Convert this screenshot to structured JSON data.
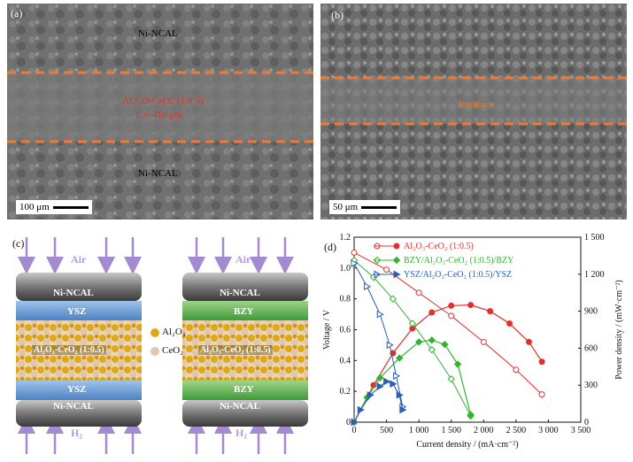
{
  "panels": {
    "a": {
      "label": "(a)",
      "top_layer": "Ni-NCAL",
      "bottom_layer": "Ni-NCAL",
      "middle_layer": "Al2O3-CeO2 (1:0.5)",
      "thickness": "L = 410 μm",
      "scale": "100 μm"
    },
    "b": {
      "label": "(b)",
      "interface": "Interface",
      "scale": "50 μm"
    },
    "c": {
      "label": "(c)",
      "cell1": {
        "air": "Air",
        "h2": "H₂",
        "anode_top": "Ni-NCAL",
        "barrier_top": "YSZ",
        "electrolyte": "Al₂O₃-CeO₂ (1:0.5)",
        "barrier_bottom": "YSZ",
        "anode_bottom": "Ni-NCAL"
      },
      "cell2": {
        "air": "Air",
        "h2": "H₂",
        "anode_top": "Ni-NCAL",
        "barrier_top": "BZY",
        "electrolyte": "Al₂O₃-CeO₂ (1:0.5)",
        "barrier_bottom": "BZY",
        "anode_bottom": "Ni-NCAL"
      },
      "legend": {
        "al2o3": "Al₂O₃",
        "ceo2": "CeO₂"
      }
    },
    "d": {
      "label": "(d)"
    }
  },
  "colors": {
    "red": "#e03030",
    "green": "#33b233",
    "blue": "#2b5fb0",
    "orange_dash": "#ee7b33"
  },
  "chart_data": {
    "type": "line",
    "xlabel": "Current density / (mA·cm⁻²)",
    "ylabel_left": "Voltage / V",
    "ylabel_right": "Power density / (mW·cm⁻²)",
    "xlim": [
      0,
      3500
    ],
    "ylim_left": [
      0,
      1.2
    ],
    "ylim_right": [
      0,
      1500
    ],
    "x_ticks": [
      "0",
      "500",
      "1 000",
      "1 500",
      "2 000",
      "2 500",
      "3 000",
      "3 500"
    ],
    "y_left_ticks": [
      "0",
      "0.2",
      "0.4",
      "0.6",
      "0.8",
      "1.0",
      "1.2"
    ],
    "y_right_ticks": [
      "0",
      "300",
      "600",
      "900",
      "1 200",
      "1 500"
    ],
    "legend": [
      "Al₂O₃-CeO₂ (1:0.5)",
      "BZY/Al₂O₃-CeO₂ (1:0.5)/BZY",
      "YSZ/Al₂O₃-CeO₂ (1:0.5)/YSZ"
    ],
    "series": [
      {
        "name": "Al₂O₃-CeO₂ (1:0.5)",
        "color": "#e03030",
        "voltage": {
          "x": [
            0,
            500,
            1000,
            1500,
            2000,
            2500,
            2900
          ],
          "y": [
            1.1,
            0.99,
            0.84,
            0.69,
            0.52,
            0.34,
            0.18
          ]
        },
        "power": {
          "x": [
            0,
            300,
            600,
            900,
            1200,
            1500,
            1800,
            2100,
            2400,
            2700,
            2900
          ],
          "y": [
            0,
            300,
            560,
            760,
            890,
            945,
            950,
            900,
            800,
            650,
            490
          ]
        }
      },
      {
        "name": "BZY/Al₂O₃-CeO₂ (1:0.5)/BZY",
        "color": "#33b233",
        "voltage": {
          "x": [
            0,
            300,
            600,
            900,
            1200,
            1500,
            1800
          ],
          "y": [
            1.05,
            0.94,
            0.8,
            0.64,
            0.47,
            0.28,
            0.04
          ]
        },
        "power": {
          "x": [
            0,
            200,
            400,
            700,
            1000,
            1200,
            1400,
            1600,
            1800
          ],
          "y": [
            0,
            200,
            360,
            520,
            650,
            665,
            630,
            470,
            60
          ]
        }
      },
      {
        "name": "YSZ/Al₂O₃-CeO₂ (1:0.5)/YSZ",
        "color": "#2b5fb0",
        "voltage": {
          "x": [
            0,
            200,
            400,
            550,
            650,
            750
          ],
          "y": [
            1.03,
            0.88,
            0.7,
            0.5,
            0.3,
            0.1
          ]
        },
        "power": {
          "x": [
            0,
            100,
            250,
            400,
            500,
            600,
            700,
            750
          ],
          "y": [
            0,
            100,
            220,
            290,
            330,
            310,
            220,
            100
          ]
        }
      }
    ]
  }
}
